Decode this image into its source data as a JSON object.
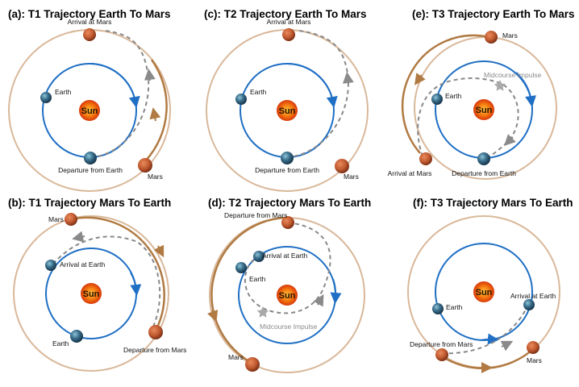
{
  "panels": [
    {
      "id": "a",
      "title": "(a): T1 Trajectory Earth To Mars",
      "labels": {
        "arrival": "Arrival at Mars",
        "earth": "Earth",
        "departure": "Departure from Earth",
        "mars": "Mars",
        "sun": "Sun"
      }
    },
    {
      "id": "b",
      "title": "(b): T1 Trajectory Mars To Earth",
      "labels": {
        "mars": "Mars",
        "arrival": "Arrival at Earth",
        "earth": "Earth",
        "departure": "Departure from Mars",
        "sun": "Sun"
      }
    },
    {
      "id": "c",
      "title": "(c): T2 Trajectory Earth To Mars",
      "labels": {
        "arrival": "Arrival at Mars",
        "earth": "Earth",
        "departure": "Departure from Earth",
        "mars": "Mars",
        "sun": "Sun"
      }
    },
    {
      "id": "d",
      "title": "(d): T2 Trajectory Mars To Earth",
      "labels": {
        "departure": "Departure from Mars",
        "arrival": "Arrival at Earth",
        "earth": "Earth",
        "midcourse": "Midcourse Impulse",
        "mars": "Mars",
        "sun": "Sun"
      }
    },
    {
      "id": "e",
      "title": "(e): T3 Trajectory Earth To Mars",
      "labels": {
        "mars": "Mars",
        "midcourse": "Midcourse Impulse",
        "earth": "Earth",
        "arrival": "Arrival at Mars",
        "departure": "Departure from Earth",
        "sun": "Sun"
      }
    },
    {
      "id": "f",
      "title": "(f): T3 Trajectory Mars To Earth",
      "labels": {
        "earth": "Earth",
        "arrival": "Arrival at Earth",
        "departure": "Departure from Mars",
        "mars": "Mars",
        "sun": "Sun"
      }
    }
  ],
  "colors": {
    "earth_orbit": "#1f6fc4",
    "mars_orbit": "#d9b89a",
    "mars_arc": "#b07a42",
    "transfer": "#888888",
    "sun_inner": "#ffb020",
    "sun_outer": "#e0400a",
    "mars_planet": "#c05a30",
    "earth_planet": "#2b5f86",
    "midcourse_star": "#aaaaaa"
  }
}
